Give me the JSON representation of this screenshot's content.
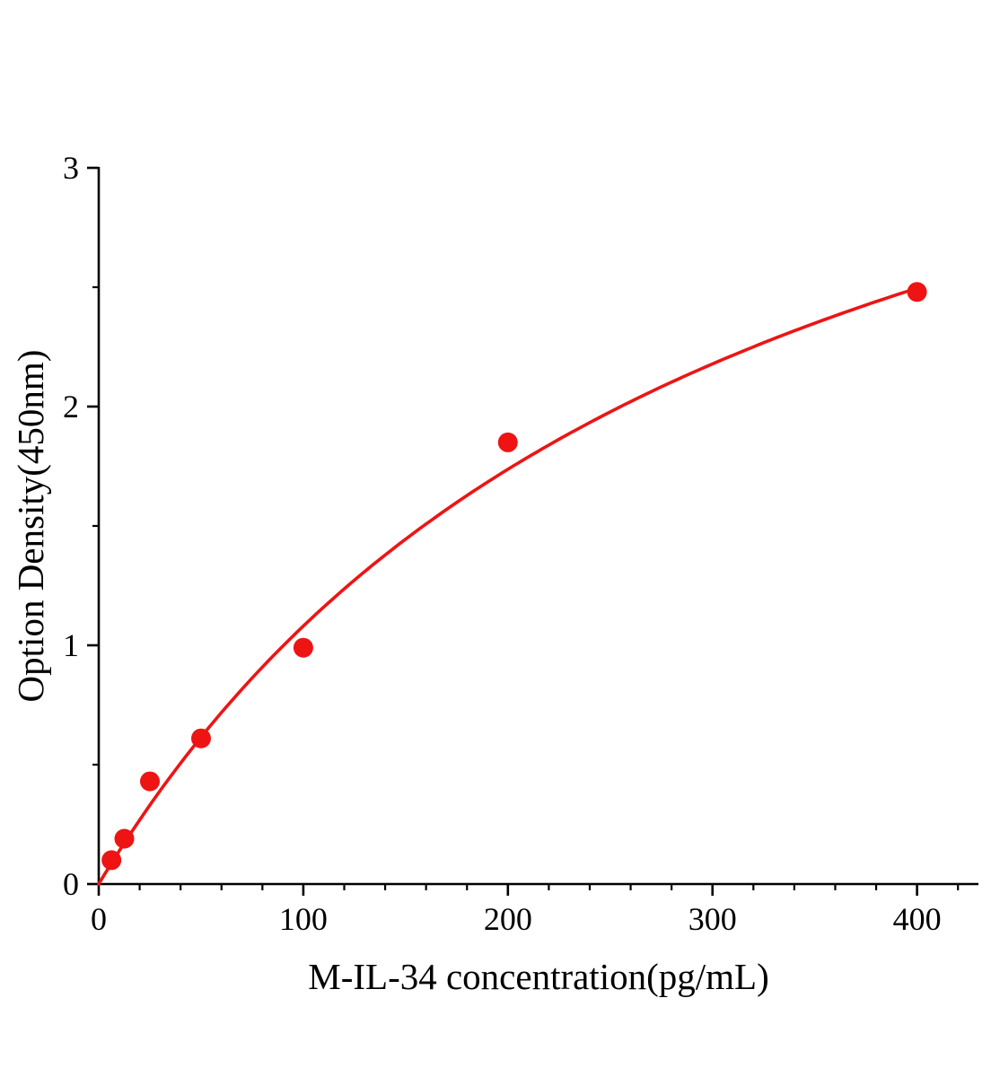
{
  "figure": {
    "background": "#ffffff"
  },
  "colors": {
    "accent_red": "#ee1414",
    "axis": "#000000",
    "text": "#000000"
  },
  "chart_data": {
    "type": "scatter",
    "title": "",
    "xlabel": "M-IL-34 concentration(pg/mL)",
    "ylabel": "Option Density(450nm)",
    "x": [
      6.25,
      12.5,
      25,
      50,
      100,
      200,
      400
    ],
    "y": [
      0.1,
      0.19,
      0.43,
      0.61,
      0.99,
      1.85,
      2.48
    ],
    "xlim": [
      0,
      430
    ],
    "ylim": [
      0,
      3
    ],
    "x_major_ticks": [
      0,
      100,
      200,
      300,
      400
    ],
    "x_minor_step": 20,
    "y_major_ticks": [
      0,
      1,
      2,
      3
    ],
    "y_minor_step": 0.5,
    "grid": false,
    "legend": null,
    "marker_radius": 11,
    "fit": {
      "type": "michaelis-menten",
      "vmax": 4.43,
      "km": 310,
      "x_start": 0,
      "x_end": 400
    }
  }
}
